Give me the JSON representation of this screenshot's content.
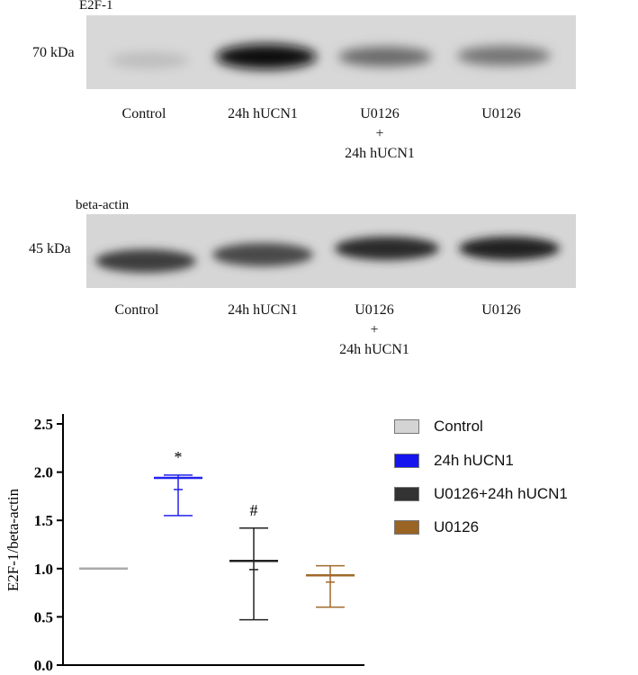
{
  "blots": [
    {
      "title": "E2F-1",
      "kda": "70 kDa",
      "lanes": [
        "Control",
        "24h hUCN1",
        "U0126\n+\n24h hUCN1",
        "U0126"
      ]
    },
    {
      "title": "beta-actin",
      "kda": "45 kDa",
      "lanes": [
        "Control",
        "24h hUCN1",
        "U0126\n+\n24h hUCN1",
        "U0126"
      ]
    }
  ],
  "chart_data": {
    "type": "scatter",
    "ylabel": "E2F-1/beta-actin",
    "xlabel": "",
    "ylim": [
      0,
      2.5
    ],
    "yticks": [
      0.0,
      0.5,
      1.0,
      1.5,
      2.0,
      2.5
    ],
    "grid": false,
    "legend_position": "right",
    "series": [
      {
        "name": "Control",
        "color": "#aaaaaa",
        "mean": 1.0,
        "median": 1.0,
        "low": 1.0,
        "high": 1.0,
        "annotation": ""
      },
      {
        "name": "24h hUCN1",
        "color": "#2222ee",
        "mean": 1.94,
        "median": 1.82,
        "low": 1.55,
        "high": 1.97,
        "annotation": "*"
      },
      {
        "name": "U0126+24h hUCN1",
        "color": "#222222",
        "mean": 1.08,
        "median": 0.99,
        "low": 0.47,
        "high": 1.42,
        "annotation": "#"
      },
      {
        "name": "U0126",
        "color": "#a0692a",
        "mean": 0.93,
        "median": 0.86,
        "low": 0.6,
        "high": 1.03,
        "annotation": ""
      }
    ],
    "legend_swatch_colors": [
      "#d4d4d4",
      "#1515f0",
      "#333333",
      "#9a6424"
    ]
  }
}
